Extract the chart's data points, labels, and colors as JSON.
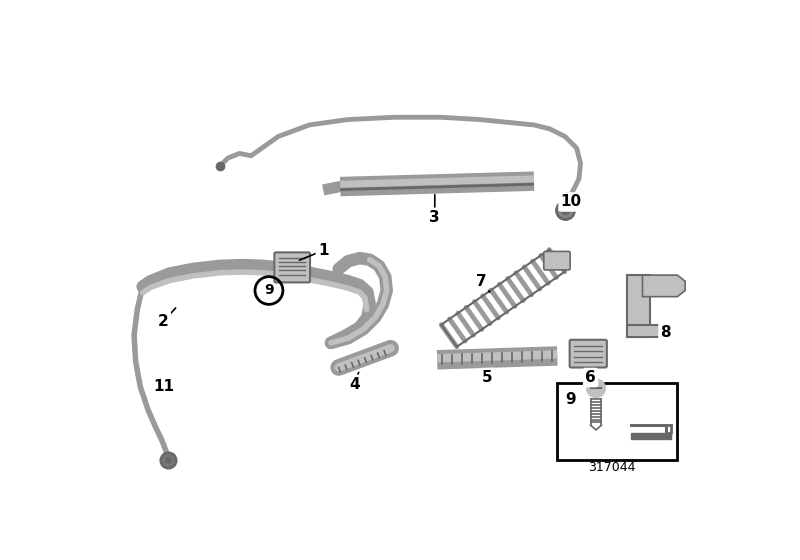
{
  "background_color": "#ffffff",
  "figure_id": "317044",
  "gray": "#9a9a9a",
  "lgray": "#c0c0c0",
  "dgray": "#686868",
  "border_color": "#000000"
}
